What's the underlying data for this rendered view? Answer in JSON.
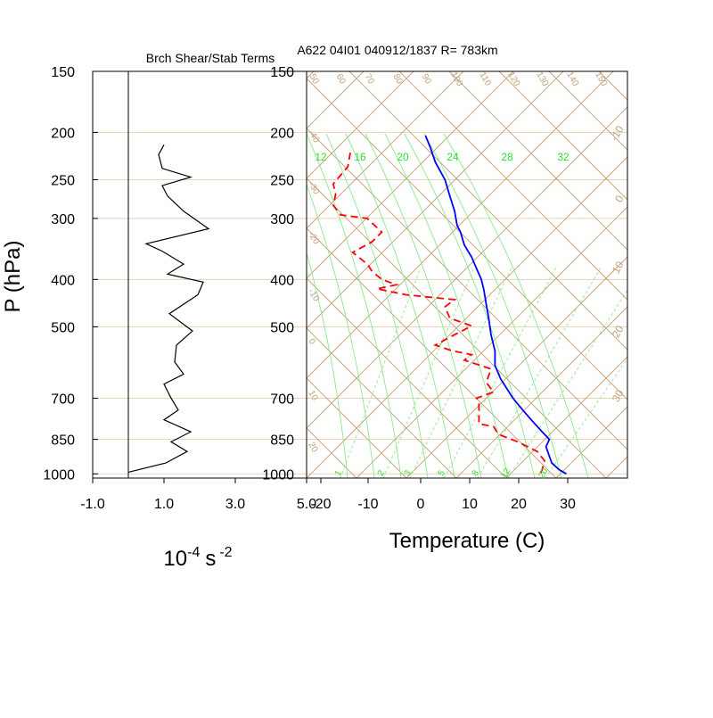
{
  "chart_data": [
    {
      "type": "line",
      "title": "Brch Shear/Stab Terms",
      "xlabel": "10",
      "xlabel_exp": "-4",
      "xlabel_unit": "s",
      "xlabel_unit_exp": "-2",
      "ylabel": "P (hPa)",
      "x_ticks": [
        "-1.0",
        "1.0",
        "3.0",
        "5.0"
      ],
      "xlim": [
        -1.0,
        5.0
      ],
      "ylim": [
        1020,
        150
      ],
      "y_scale": "log",
      "y_ticks": [
        150,
        200,
        250,
        300,
        400,
        500,
        700,
        850,
        1000
      ],
      "reference_line_x": 0,
      "series": [
        {
          "color": "#000000",
          "points": [
            [
              1.0,
              212
            ],
            [
              0.85,
              222
            ],
            [
              0.95,
              237
            ],
            [
              1.75,
              247
            ],
            [
              0.95,
              257
            ],
            [
              1.1,
              270
            ],
            [
              1.55,
              290
            ],
            [
              2.25,
              315
            ],
            [
              0.5,
              338
            ],
            [
              0.95,
              350
            ],
            [
              1.55,
              372
            ],
            [
              1.1,
              390
            ],
            [
              2.1,
              405
            ],
            [
              1.95,
              430
            ],
            [
              1.15,
              470
            ],
            [
              1.8,
              510
            ],
            [
              1.35,
              545
            ],
            [
              1.3,
              590
            ],
            [
              1.55,
              625
            ],
            [
              1.0,
              655
            ],
            [
              1.2,
              700
            ],
            [
              1.4,
              740
            ],
            [
              1.0,
              775
            ],
            [
              1.75,
              820
            ],
            [
              1.2,
              860
            ],
            [
              1.65,
              900
            ],
            [
              1.05,
              950
            ],
            [
              0.0,
              992
            ]
          ]
        }
      ]
    },
    {
      "type": "line",
      "title": "A622 04I01 040912/1837 R= 783km",
      "xlabel": "Temperature (C)",
      "ylabel": "",
      "x_ticks": [
        "-20",
        "-10",
        "0",
        "10",
        "20",
        "30"
      ],
      "xlim": [
        -23,
        42
      ],
      "y_scale": "log",
      "y_ticks": [
        150,
        200,
        250,
        300,
        400,
        500,
        700,
        850,
        1000
      ],
      "isotherm_labels": [
        "12",
        "16",
        "20",
        "24",
        "28",
        "32"
      ],
      "mixing_ratio_labels": [
        "1",
        "2",
        "3",
        "5",
        "8",
        "12",
        "20"
      ],
      "left_dry_adiabat_labels": [
        "-40",
        "-30",
        "-20",
        "-10",
        "0",
        "10",
        "20"
      ],
      "top_dry_adiabat_labels": [
        "50",
        "60",
        "70",
        "80",
        "90",
        "100",
        "110",
        "120",
        "130",
        "140",
        "150"
      ],
      "right_moist_adiabat_labels": [
        "-10",
        "0",
        "10",
        "20",
        "30"
      ],
      "series": [
        {
          "name": "",
          "color": "#0000ff",
          "style": "solid",
          "points": [
            [
              1,
              203
            ],
            [
              2,
              215
            ],
            [
              3,
              230
            ],
            [
              5,
              250
            ],
            [
              6,
              270
            ],
            [
              7,
              290
            ],
            [
              7.5,
              310
            ],
            [
              8.2,
              320
            ],
            [
              9,
              340
            ],
            [
              10.5,
              360
            ],
            [
              11.5,
              380
            ],
            [
              12.5,
              400
            ],
            [
              13,
              420
            ],
            [
              13.5,
              450
            ],
            [
              14,
              480
            ],
            [
              14.5,
              520
            ],
            [
              15.3,
              560
            ],
            [
              15.3,
              600
            ],
            [
              16.5,
              640
            ],
            [
              19,
              700
            ],
            [
              21,
              740
            ],
            [
              23,
              780
            ],
            [
              25,
              820
            ],
            [
              26.5,
              850
            ],
            [
              25.8,
              880
            ],
            [
              26.5,
              920
            ],
            [
              27,
              950
            ],
            [
              28.5,
              980
            ],
            [
              30,
              1000
            ]
          ]
        },
        {
          "name": "",
          "color": "#ff0000",
          "style": "dashed",
          "points": [
            [
              -14.5,
              220
            ],
            [
              -15,
              235
            ],
            [
              -18,
              255
            ],
            [
              -17.5,
              268
            ],
            [
              -18,
              282
            ],
            [
              -16.5,
              295
            ],
            [
              -11,
              300
            ],
            [
              -8,
              320
            ],
            [
              -10,
              335
            ],
            [
              -14,
              352
            ],
            [
              -11,
              372
            ],
            [
              -10,
              385
            ],
            [
              -8,
              400
            ],
            [
              -5,
              410
            ],
            [
              -9,
              418
            ],
            [
              -3,
              430
            ],
            [
              7,
              440
            ],
            [
              5,
              455
            ],
            [
              6,
              480
            ],
            [
              10.5,
              498
            ],
            [
              6,
              525
            ],
            [
              3,
              545
            ],
            [
              6.5,
              560
            ],
            [
              10.5,
              570
            ],
            [
              9,
              585
            ],
            [
              14.5,
              610
            ],
            [
              13.5,
              650
            ],
            [
              15,
              680
            ],
            [
              11.5,
              700
            ],
            [
              12,
              720
            ],
            [
              12,
              790
            ],
            [
              15,
              800
            ],
            [
              16,
              830
            ],
            [
              20,
              860
            ],
            [
              24,
              900
            ],
            [
              25.5,
              940
            ],
            [
              25,
              980
            ],
            [
              24.5,
              1005
            ]
          ]
        }
      ]
    }
  ]
}
